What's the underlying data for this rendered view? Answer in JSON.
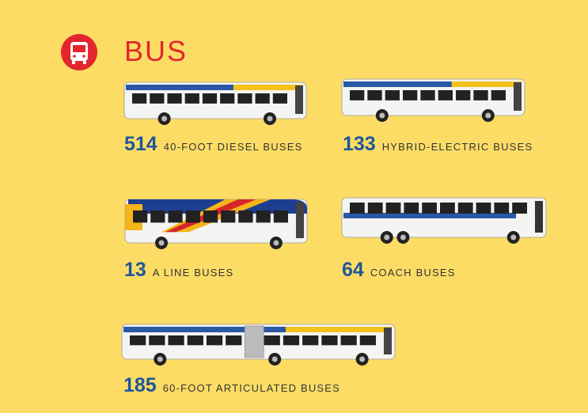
{
  "header": {
    "title": "BUS"
  },
  "items": [
    {
      "count": 514,
      "label": "40-FOOT DIESEL BUSES"
    },
    {
      "count": 133,
      "label": "HYBRID-ELECTRIC BUSES"
    },
    {
      "count": 13,
      "label": "A LINE BUSES"
    },
    {
      "count": 64,
      "label": "COACH BUSES"
    },
    {
      "count": 185,
      "label": "60-FOOT ARTICULATED BUSES"
    }
  ]
}
